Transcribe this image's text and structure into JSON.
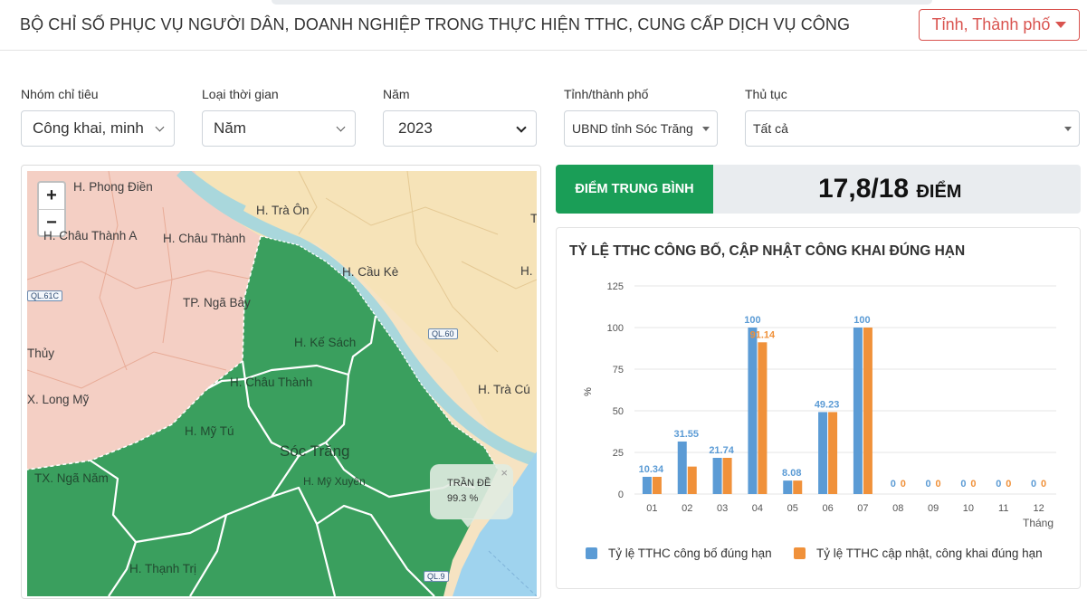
{
  "header": {
    "title": "BỘ CHỈ SỐ PHỤC VỤ NGƯỜI DÂN, DOANH NGHIỆP TRONG THỰC HIỆN TTHC, CUNG CẤP DỊCH VỤ CÔNG",
    "province_button": "Tỉnh, Thành phố"
  },
  "filters": {
    "indicator_group": {
      "label": "Nhóm chỉ tiêu",
      "value": "Công khai, minh"
    },
    "time_type": {
      "label": "Loại thời gian",
      "value": "Năm"
    },
    "year": {
      "label": "Năm",
      "value": "2023"
    },
    "province": {
      "label": "Tỉnh/thành phố",
      "value": "UBND tỉnh Sóc Trăng"
    },
    "procedure": {
      "label": "Thủ tục",
      "value": "Tất cả"
    }
  },
  "map": {
    "zoom_in": "+",
    "zoom_out": "−",
    "labels": {
      "phong_dien": "H. Phong Điền",
      "tra_on": "H. Trà Ôn",
      "chau_thanh_a": "H. Châu Thành A",
      "chau_thanh_hg": "H. Châu Thành",
      "cau_ke": "H. Cầu Kè",
      "nga_bay": "TP. Ngã Bảy",
      "ke_sach": "H. Kế Sách",
      "thuy": "Thủy",
      "long_my": "X. Long Mỹ",
      "chau_thanh_st": "H. Châu Thành",
      "tra_cu": "H. Trà Cú",
      "my_tu": "H. Mỹ Tú",
      "soc_trang": "Sóc Trăng",
      "my_xuyen": "H. Mỹ Xuyên",
      "nga_nam": "TX. Ngã Năm",
      "thanh_tri": "H. Thạnh Trị",
      "h_edge": "H.",
      "t_edge": "T"
    },
    "roads": {
      "ql61c": "QL.61C",
      "ql60": "QL.60",
      "ql91": "QL.9"
    },
    "popup": {
      "name": "TRẦN ĐỀ",
      "value": "99.3 %",
      "close": "×"
    }
  },
  "score": {
    "label": "ĐIỂM TRUNG BÌNH",
    "value": "17,8/18",
    "unit": "ĐIỂM"
  },
  "colors": {
    "accent_green": "#1a9e57",
    "map_green": "#3a9f5e",
    "danger": "#d9534f",
    "bar_blue": "#5b9bd5",
    "bar_orange": "#f0913a"
  },
  "chart_data": {
    "type": "bar",
    "title": "TỶ LỆ TTHC CÔNG BỐ, CẬP NHẬT CÔNG KHAI ĐÚNG HẠN",
    "categories": [
      "01",
      "02",
      "03",
      "04",
      "05",
      "06",
      "07",
      "08",
      "09",
      "10",
      "11",
      "12"
    ],
    "xlabel": "Tháng",
    "ylabel": "%",
    "ylim": [
      0,
      125
    ],
    "yticks": [
      0,
      25,
      50,
      75,
      100,
      125
    ],
    "grid": true,
    "legend_position": "bottom",
    "series": [
      {
        "name": "Tỷ lệ TTHC công bố đúng hạn",
        "color": "#5b9bd5",
        "values": [
          10.34,
          31.55,
          21.74,
          100,
          8.08,
          49.23,
          100,
          0,
          0,
          0,
          0,
          0
        ],
        "labels": [
          "10.34",
          "31.55",
          "21.74",
          "100",
          "8.08",
          "49.23",
          "100",
          "0",
          "0",
          "0",
          "0",
          "0"
        ]
      },
      {
        "name": "Tỷ lệ TTHC cập nhật, công khai đúng hạn",
        "color": "#f0913a",
        "values": [
          10.34,
          16.5,
          21.74,
          91.14,
          8.08,
          49.23,
          100,
          0,
          0,
          0,
          0,
          0
        ],
        "labels": [
          "",
          "",
          "",
          "91.14",
          "",
          "",
          "",
          "0",
          "0",
          "0",
          "0",
          "0"
        ]
      }
    ]
  }
}
